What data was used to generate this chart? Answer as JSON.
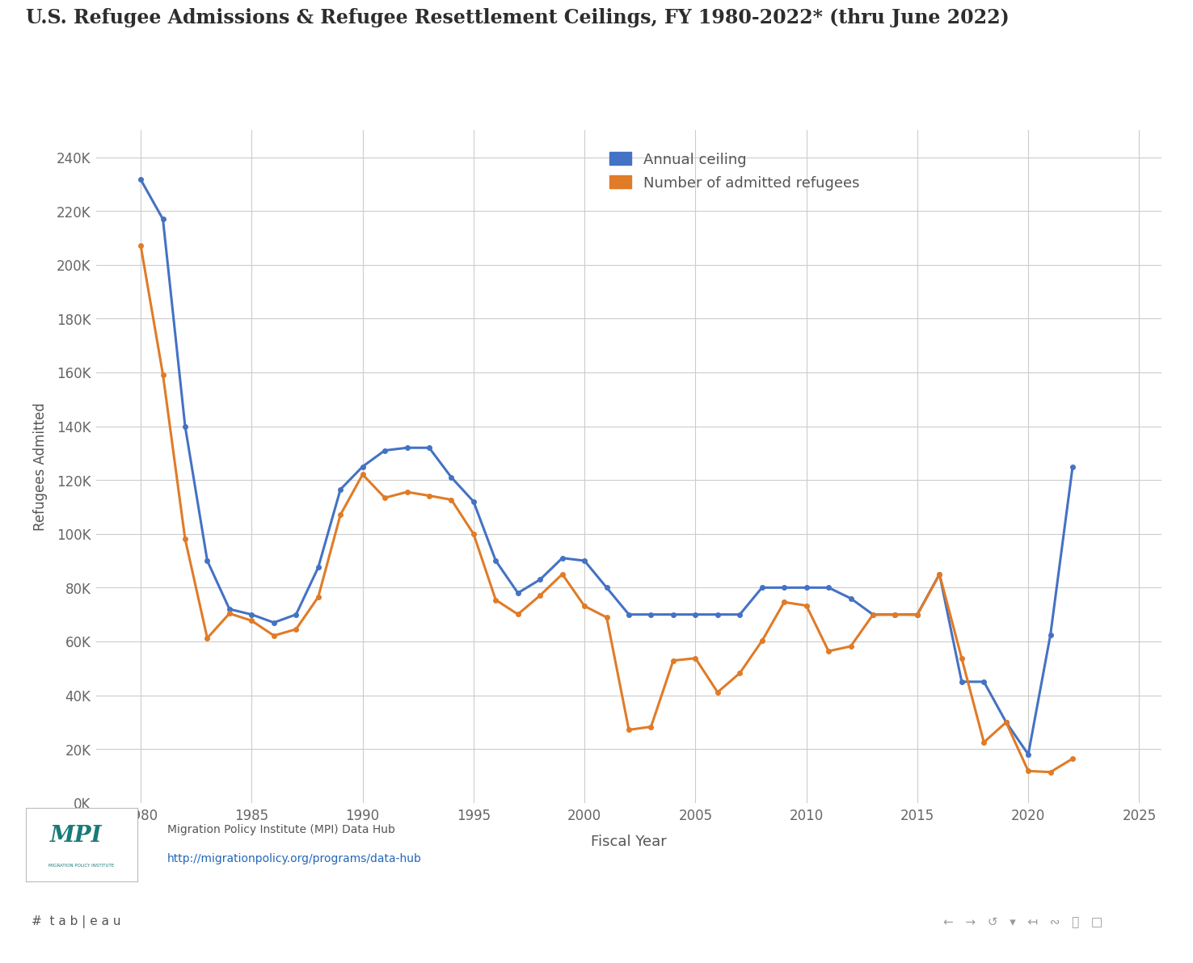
{
  "title": "U.S. Refugee Admissions & Refugee Resettlement Ceilings, FY 1980-2022* (thru June 2022)",
  "xlabel": "Fiscal Year",
  "ylabel": "Refugees Admitted",
  "ceiling_color": "#4472c4",
  "admitted_color": "#e07b27",
  "background_color": "#ffffff",
  "grid_color": "#cccccc",
  "title_color": "#2d2d2d",
  "label_color": "#555555",
  "tick_color": "#666666",
  "ceiling_label": "Annual ceiling",
  "admitted_label": "Number of admitted refugees",
  "source_text": "Migration Policy Institute (MPI) Data Hub",
  "source_url": "http://migrationpolicy.org/programs/data-hub",
  "years_ceiling": [
    1980,
    1981,
    1982,
    1983,
    1984,
    1985,
    1986,
    1987,
    1988,
    1989,
    1990,
    1991,
    1992,
    1993,
    1994,
    1995,
    1996,
    1997,
    1998,
    1999,
    2000,
    2001,
    2002,
    2003,
    2004,
    2005,
    2006,
    2007,
    2008,
    2009,
    2010,
    2011,
    2012,
    2013,
    2014,
    2015,
    2016,
    2017,
    2018,
    2019,
    2020,
    2021,
    2022
  ],
  "ceiling_values": [
    231700,
    217000,
    140000,
    90000,
    72000,
    70000,
    67000,
    70000,
    87500,
    116500,
    125000,
    131000,
    132000,
    132000,
    121000,
    112000,
    90000,
    78000,
    83000,
    91000,
    90000,
    80000,
    70000,
    70000,
    70000,
    70000,
    70000,
    70000,
    80000,
    80000,
    80000,
    80000,
    76000,
    70000,
    70000,
    70000,
    85000,
    45000,
    45000,
    30000,
    18000,
    62500,
    125000
  ],
  "years_admitted": [
    1980,
    1981,
    1982,
    1983,
    1984,
    1985,
    1986,
    1987,
    1988,
    1989,
    1990,
    1991,
    1992,
    1993,
    1994,
    1995,
    1996,
    1997,
    1998,
    1999,
    2000,
    2001,
    2002,
    2003,
    2004,
    2005,
    2006,
    2007,
    2008,
    2009,
    2010,
    2011,
    2012,
    2013,
    2014,
    2015,
    2016,
    2017,
    2018,
    2019,
    2020,
    2021,
    2022
  ],
  "admitted_values": [
    207116,
    159252,
    98096,
    61218,
    70393,
    67704,
    62146,
    64528,
    76483,
    107070,
    122066,
    113389,
    115548,
    114181,
    112682,
    99974,
    75421,
    70085,
    77107,
    85006,
    73147,
    68925,
    27110,
    28286,
    52892,
    53738,
    41094,
    48217,
    60191,
    74602,
    73311,
    56384,
    58179,
    69909,
    69975,
    69920,
    84994,
    53716,
    22491,
    29916,
    11814,
    11411,
    16418
  ],
  "ylim": [
    0,
    250000
  ],
  "xlim": [
    1978,
    2026
  ],
  "yticks": [
    0,
    20000,
    40000,
    60000,
    80000,
    100000,
    120000,
    140000,
    160000,
    180000,
    200000,
    220000,
    240000
  ],
  "ytick_labels": [
    "0K",
    "20K",
    "40K",
    "60K",
    "80K",
    "100K",
    "120K",
    "140K",
    "160K",
    "180K",
    "200K",
    "220K",
    "240K"
  ],
  "xticks": [
    1980,
    1985,
    1990,
    1995,
    2000,
    2005,
    2010,
    2015,
    2020,
    2025
  ],
  "linewidth": 2.2,
  "markersize": 4,
  "footer_bg": "#e8e8e8",
  "source_bg": "#f5f5f5"
}
